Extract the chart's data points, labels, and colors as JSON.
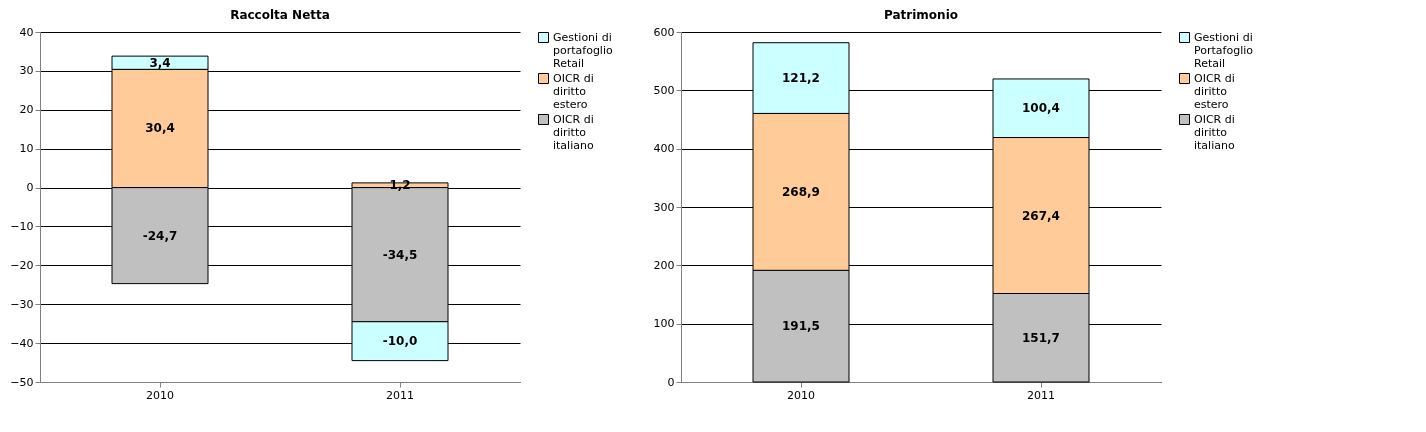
{
  "chart_data": [
    {
      "type": "bar",
      "title": "Raccolta Netta",
      "categories": [
        "2010",
        "2011"
      ],
      "stacked": true,
      "ylim": [
        -50,
        40
      ],
      "yticks": [
        -50,
        -40,
        -30,
        -20,
        -10,
        0,
        10,
        20,
        30,
        40
      ],
      "grid": "y",
      "legend": "right",
      "series": [
        {
          "name": "OICR di diritto italiano",
          "color": "#c0c0c0",
          "values": [
            -24.7,
            -34.5
          ],
          "value_labels": [
            "-24,7",
            "-34,5"
          ]
        },
        {
          "name": "OICR di diritto estero",
          "color": "#ffcc99",
          "values": [
            30.4,
            1.2
          ],
          "value_labels": [
            "30,4",
            "1,2"
          ]
        },
        {
          "name": "Gestioni di portafoglio Retail",
          "color": "#ccffff",
          "values": [
            3.4,
            -10.0
          ],
          "value_labels": [
            "3,4",
            "-10,0"
          ]
        }
      ]
    },
    {
      "type": "bar",
      "title": "Patrimonio",
      "categories": [
        "2010",
        "2011"
      ],
      "stacked": true,
      "ylim": [
        0,
        600
      ],
      "yticks": [
        0,
        100,
        200,
        300,
        400,
        500,
        600
      ],
      "grid": "y",
      "legend": "right",
      "series": [
        {
          "name": "OICR di diritto italiano",
          "color": "#c0c0c0",
          "values": [
            191.5,
            151.7
          ],
          "value_labels": [
            "191,5",
            "151,7"
          ]
        },
        {
          "name": "OICR di diritto estero",
          "color": "#ffcc99",
          "values": [
            268.9,
            267.4
          ],
          "value_labels": [
            "268,9",
            "267,4"
          ]
        },
        {
          "name": "Gestioni di Portafoglio Retail",
          "color": "#ccffff",
          "values": [
            121.2,
            100.4
          ],
          "value_labels": [
            "121,2",
            "100,4"
          ]
        }
      ]
    }
  ]
}
